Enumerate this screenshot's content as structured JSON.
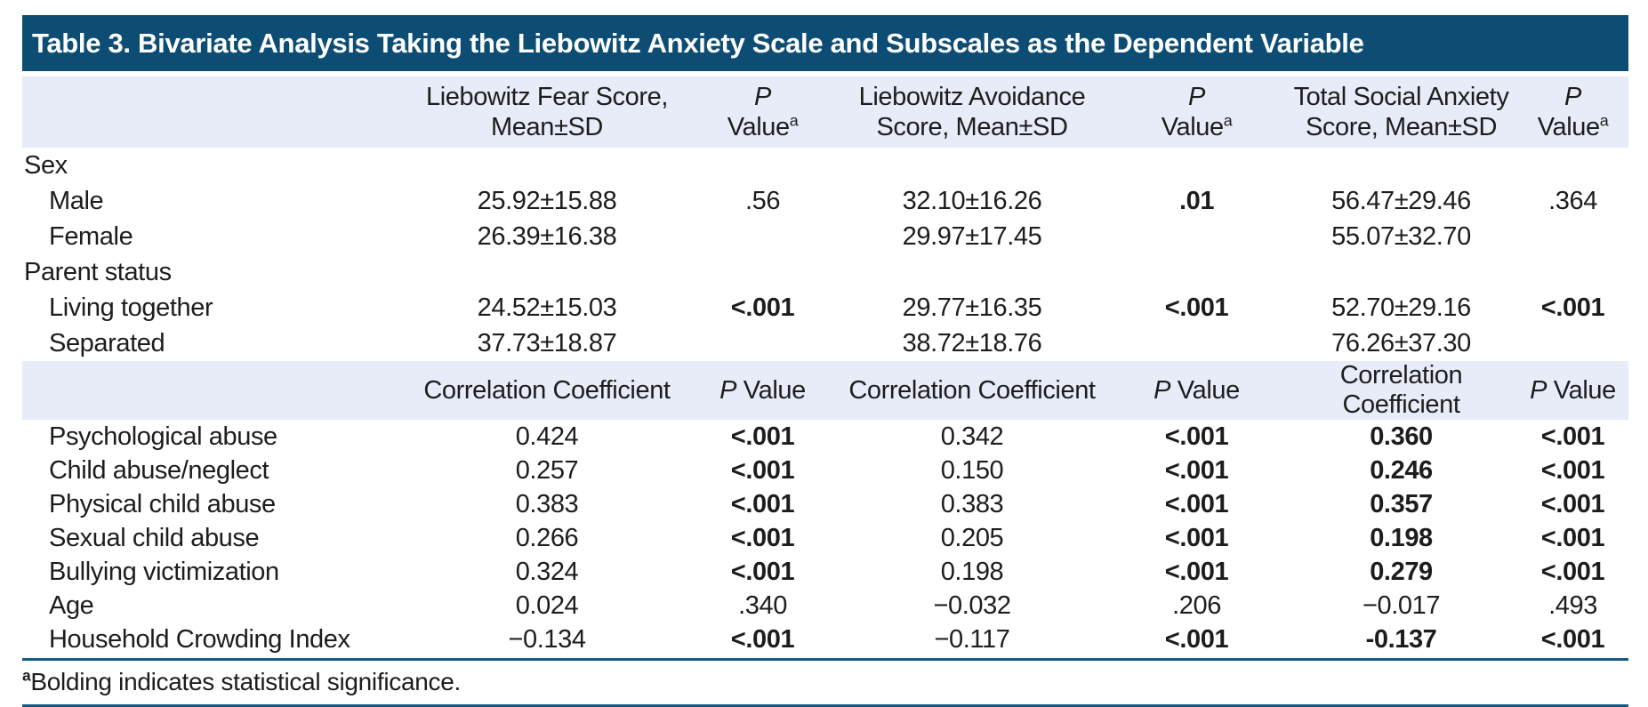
{
  "table": {
    "title": "Table 3. Bivariate Analysis Taking the Liebowitz Anxiety Scale and Subscales as the Dependent Variable",
    "colors": {
      "title_bar": "#0E4D73",
      "header_band": "#E8ECF8",
      "rule": "#175A82"
    },
    "header1": {
      "fear_line1": "Liebowitz Fear Score,",
      "fear_line2": "Mean±SD",
      "avoidance_line1": "Liebowitz Avoidance",
      "avoidance_line2": "Score, Mean±SD",
      "total_line1": "Total Social Anxiety",
      "total_line2": "Score, Mean±SD",
      "p_italic": "P",
      "p_value": "Value",
      "p_sup": "a"
    },
    "header2": {
      "cc": "Correlation Coefficient",
      "p_italic": "P",
      "p_value": "Value"
    },
    "rows": [
      {
        "label": "Sex",
        "v1": "",
        "p1": "",
        "v2": "",
        "p2": "",
        "v3": "",
        "p3": ""
      },
      {
        "label": "Male",
        "v1": "25.92±15.88",
        "p1": ".56",
        "v2": "32.10±16.26",
        "p2": ".01",
        "v3": "56.47±29.46",
        "p3": ".364"
      },
      {
        "label": "Female",
        "v1": "26.39±16.38",
        "p1": "",
        "v2": "29.97±17.45",
        "p2": "",
        "v3": "55.07±32.70",
        "p3": ""
      },
      {
        "label": "Parent status",
        "v1": "",
        "p1": "",
        "v2": "",
        "p2": "",
        "v3": "",
        "p3": ""
      },
      {
        "label": "Living together",
        "v1": "24.52±15.03",
        "p1": "<.001",
        "v2": "29.77±16.35",
        "p2": "<.001",
        "v3": "52.70±29.16",
        "p3": "<.001"
      },
      {
        "label": "Separated",
        "v1": "37.73±18.87",
        "p1": "",
        "v2": "38.72±18.76",
        "p2": "",
        "v3": "76.26±37.30",
        "p3": ""
      }
    ],
    "corr_rows": [
      {
        "label": "Psychological abuse",
        "v1": "0.424",
        "p1": "<.001",
        "v2": "0.342",
        "p2": "<.001",
        "v3": "0.360",
        "p3": "<.001"
      },
      {
        "label": "Child abuse/neglect",
        "v1": "0.257",
        "p1": "<.001",
        "v2": "0.150",
        "p2": "<.001",
        "v3": "0.246",
        "p3": "<.001"
      },
      {
        "label": "Physical child abuse",
        "v1": "0.383",
        "p1": "<.001",
        "v2": "0.383",
        "p2": "<.001",
        "v3": "0.357",
        "p3": "<.001"
      },
      {
        "label": "Sexual child abuse",
        "v1": "0.266",
        "p1": "<.001",
        "v2": "0.205",
        "p2": "<.001",
        "v3": "0.198",
        "p3": "<.001"
      },
      {
        "label": "Bullying victimization",
        "v1": "0.324",
        "p1": "<.001",
        "v2": "0.198",
        "p2": "<.001",
        "v3": "0.279",
        "p3": "<.001"
      },
      {
        "label": "Age",
        "v1": "0.024",
        "p1": ".340",
        "v2": "−0.032",
        "p2": ".206",
        "v3": "−0.017",
        "p3": ".493"
      },
      {
        "label": "Household Crowding Index",
        "v1": "−0.134",
        "p1": "<.001",
        "v2": "−0.117",
        "p2": "<.001",
        "v3": "-0.137",
        "p3": "<.001"
      }
    ],
    "footnote": {
      "sup": "a",
      "text": "Bolding indicates statistical significance."
    }
  }
}
